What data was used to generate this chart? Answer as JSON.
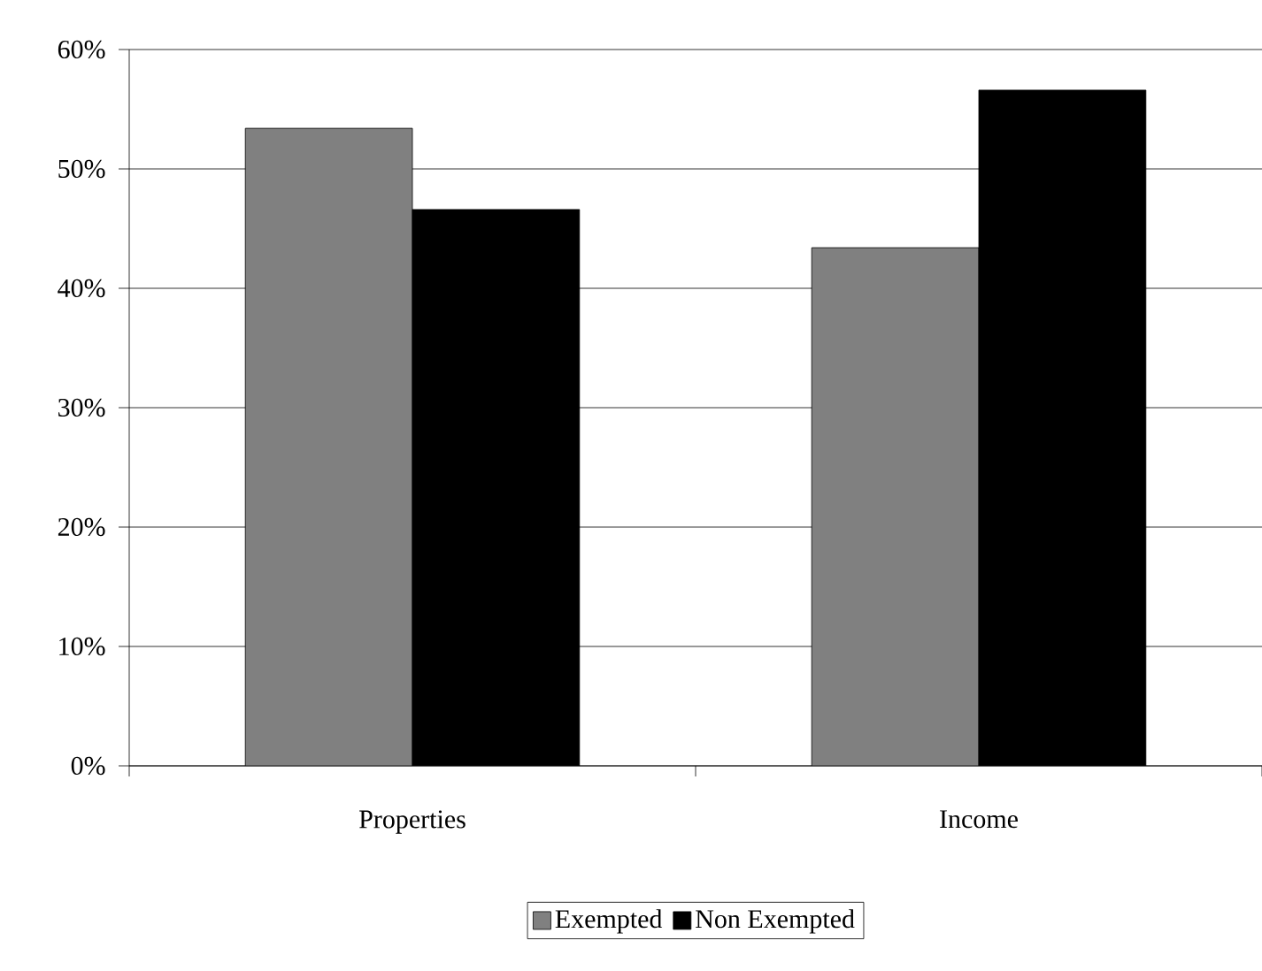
{
  "chart_data": {
    "type": "bar",
    "categories": [
      "Properties",
      "Income"
    ],
    "series": [
      {
        "name": "Exempted",
        "color": "#808080",
        "values": [
          53.4,
          43.4
        ]
      },
      {
        "name": "Non Exempted",
        "color": "#000000",
        "values": [
          46.6,
          56.6
        ]
      }
    ],
    "ylim": [
      0,
      60
    ],
    "yticks": [
      {
        "value": 0,
        "label": "0%"
      },
      {
        "value": 10,
        "label": "10%"
      },
      {
        "value": 20,
        "label": "20%"
      },
      {
        "value": 30,
        "label": "30%"
      },
      {
        "value": 40,
        "label": "40%"
      },
      {
        "value": 50,
        "label": "50%"
      },
      {
        "value": 60,
        "label": "60%"
      }
    ],
    "grid": "y",
    "legend": "bottom"
  }
}
